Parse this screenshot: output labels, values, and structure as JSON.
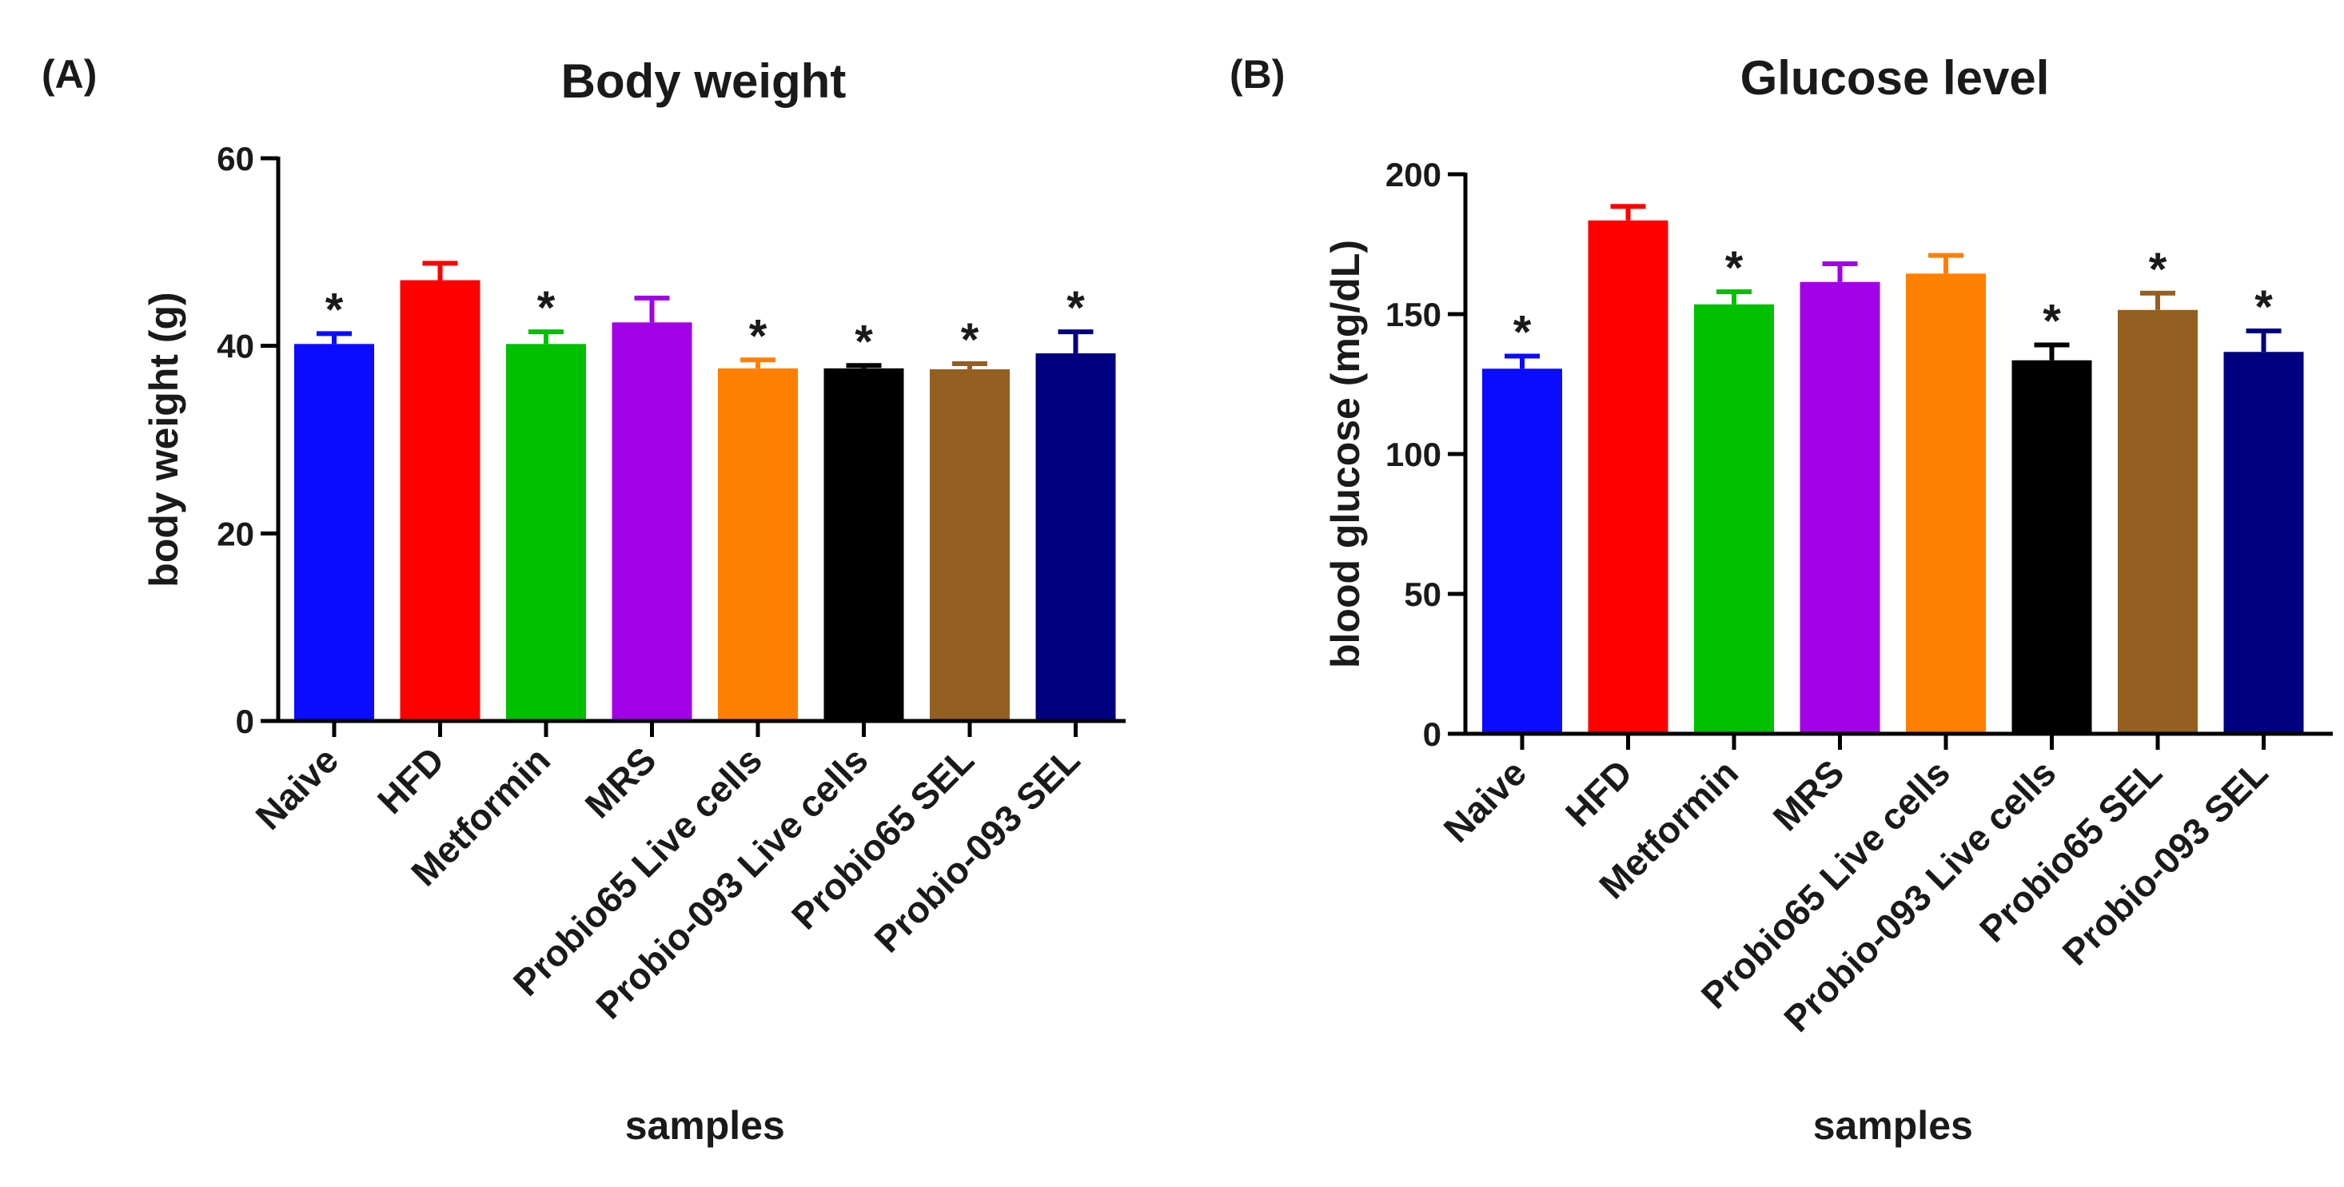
{
  "chart_data": [
    {
      "type": "bar",
      "panel_label": "(A)",
      "title": "Body weight",
      "xlabel": "samples",
      "ylabel": "body weight (g)",
      "ylim": [
        0,
        60
      ],
      "yticks": [
        "0",
        "20",
        "40",
        "60"
      ],
      "categories": [
        "Naive",
        "HFD",
        "Metformin",
        "MRS",
        "Probio65 Live cells",
        "Probio-093 Live cells",
        "Probio65 SEL",
        "Probio-093 SEL"
      ],
      "values": [
        40.2,
        47.0,
        40.2,
        42.5,
        37.6,
        37.6,
        37.5,
        39.2
      ],
      "errors": [
        1.1,
        1.8,
        1.3,
        2.6,
        0.9,
        0.3,
        0.6,
        2.3
      ],
      "significance": [
        "*",
        "",
        "*",
        "",
        "*",
        "*",
        "*",
        "*"
      ],
      "colors": [
        "#0b0bff",
        "#ff0000",
        "#00c000",
        "#a200e6",
        "#ff8000",
        "#000000",
        "#936021",
        "#000080"
      ]
    },
    {
      "type": "bar",
      "panel_label": "(B)",
      "title": "Glucose level",
      "xlabel": "samples",
      "ylabel": "blood glucose (mg/dL)",
      "ylim": [
        0,
        200
      ],
      "yticks": [
        "0",
        "50",
        "100",
        "150",
        "200"
      ],
      "categories": [
        "Naive",
        "HFD",
        "Metformin",
        "MRS",
        "Probio65 Live cells",
        "Probio-093 Live cells",
        "Probio65 SEL",
        "Probio-093 SEL"
      ],
      "values": [
        130.5,
        183.5,
        153.5,
        161.5,
        164.5,
        133.5,
        151.5,
        136.5
      ],
      "errors": [
        4.5,
        5.0,
        4.5,
        6.5,
        6.5,
        5.5,
        6.0,
        7.5
      ],
      "significance": [
        "*",
        "",
        "*",
        "",
        "",
        "*",
        "*",
        "*"
      ],
      "colors": [
        "#0b0bff",
        "#ff0000",
        "#00c000",
        "#a200e6",
        "#ff8000",
        "#000000",
        "#936021",
        "#000080"
      ]
    }
  ]
}
